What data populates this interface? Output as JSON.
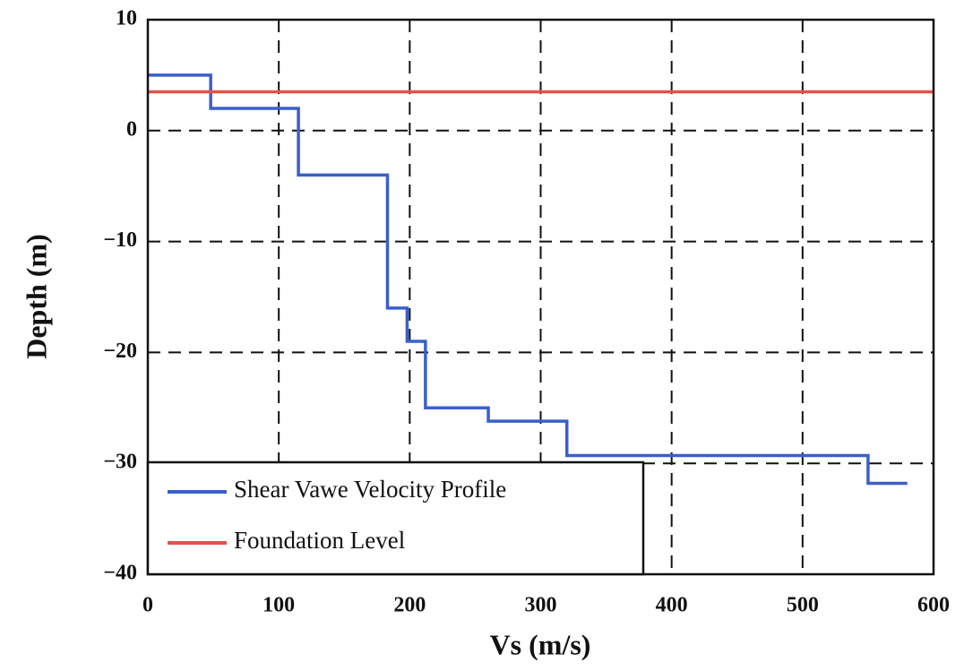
{
  "chart_data": {
    "type": "line",
    "xlabel": "Vs (m/s)",
    "ylabel": "Depth (m)",
    "xlim": [
      0,
      600
    ],
    "ylim": [
      -40,
      10
    ],
    "xticks": [
      0,
      100,
      200,
      300,
      400,
      500,
      600
    ],
    "yticks": [
      {
        "value": -40,
        "label": "−40"
      },
      {
        "value": -30,
        "label": "−30"
      },
      {
        "value": -20,
        "label": "−20"
      },
      {
        "value": -10,
        "label": "−10"
      },
      0,
      10
    ],
    "grid": true,
    "legend": "lower left",
    "series": [
      {
        "name": "Shear Vawe Velocity Profile",
        "color": "#3a5fcd",
        "x": [
          0,
          48,
          48,
          115,
          115,
          183,
          183,
          198,
          198,
          212,
          212,
          260,
          260,
          320,
          320,
          550,
          550,
          580
        ],
        "values": [
          5,
          5,
          2,
          2,
          -4,
          -4,
          -16,
          -16,
          -19,
          -19,
          -25,
          -25,
          -26.2,
          -26.2,
          -29.3,
          -29.3,
          -31.8,
          -31.8
        ]
      },
      {
        "name": "Foundation Level",
        "color": "#e8504a",
        "x": [
          0,
          600
        ],
        "values": [
          3.5,
          3.5
        ]
      }
    ]
  }
}
